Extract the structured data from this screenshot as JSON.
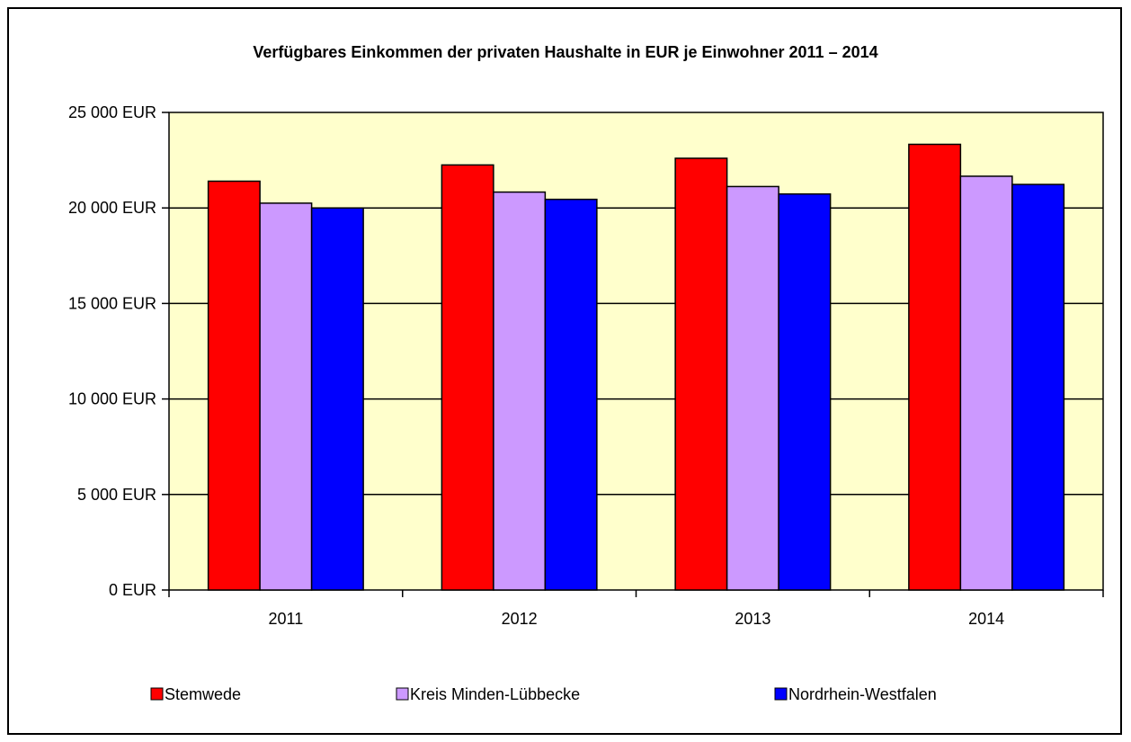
{
  "chart_data": {
    "type": "bar",
    "title": "Verfügbares Einkommen der privaten Haushalte in EUR je Einwohner 2011 – 2014",
    "xlabel": "",
    "ylabel": "",
    "categories": [
      "2011",
      "2012",
      "2013",
      "2014"
    ],
    "series": [
      {
        "name": "Stemwede",
        "color": "#ff0000",
        "values": [
          21400,
          22250,
          22600,
          23330
        ]
      },
      {
        "name": "Kreis Minden-Lübbecke",
        "color": "#cc99ff",
        "values": [
          20250,
          20830,
          21120,
          21660
        ]
      },
      {
        "name": "Nordrhein-Westfalen",
        "color": "#0000ff",
        "values": [
          20000,
          20450,
          20730,
          21230
        ]
      }
    ],
    "ylim": [
      0,
      25000
    ],
    "yticks": [
      0,
      5000,
      10000,
      15000,
      20000,
      25000
    ],
    "ytick_labels": [
      "0 EUR",
      "5 000 EUR",
      "10 000 EUR",
      "15 000 EUR",
      "20 000 EUR",
      "25 000 EUR"
    ],
    "grid": true,
    "legend": "bottom",
    "plot_background": "#ffffcc"
  }
}
